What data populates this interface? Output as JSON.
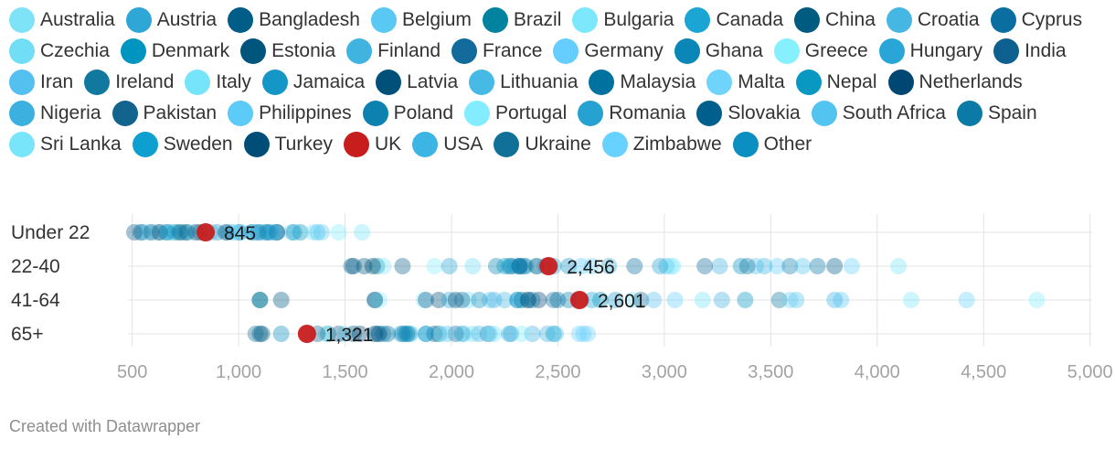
{
  "chart_data": {
    "type": "scatter",
    "title": "",
    "xlabel": "",
    "ylabel": "",
    "xlim": [
      480,
      5010
    ],
    "x_ticks": [
      {
        "value": 500,
        "label": "500"
      },
      {
        "value": 1000,
        "label": "1,000"
      },
      {
        "value": 1500,
        "label": "1,500"
      },
      {
        "value": 2000,
        "label": "2,000"
      },
      {
        "value": 2500,
        "label": "2,500"
      },
      {
        "value": 3000,
        "label": "3,000"
      },
      {
        "value": 3500,
        "label": "3,500"
      },
      {
        "value": 4000,
        "label": "4,000"
      },
      {
        "value": 4500,
        "label": "4,500"
      },
      {
        "value": 5000,
        "label": "5,000"
      }
    ],
    "grid": true,
    "legend_position": "top",
    "rows": [
      "Under 22",
      "22-40",
      "41-64",
      "65+"
    ],
    "highlight": {
      "series": "UK",
      "color": "#c71e1d",
      "values": [
        {
          "row": "Under 22",
          "value": 845,
          "label": "845"
        },
        {
          "row": "22-40",
          "value": 2456,
          "label": "2,456"
        },
        {
          "row": "41-64",
          "value": 2601,
          "label": "2,601"
        },
        {
          "row": "65+",
          "value": 1321,
          "label": "1,321"
        }
      ]
    },
    "series": [
      {
        "name": "Australia",
        "color": "#7fe3f7",
        "values": [
          1120,
          2400,
          2850,
          2060
        ]
      },
      {
        "name": "Austria",
        "color": "#2fa7d6",
        "values": [
          1010,
          2350,
          2360,
          1880
        ]
      },
      {
        "name": "Bangladesh",
        "color": "#005d87",
        "values": [
          540,
          1540,
          1100,
          1100
        ]
      },
      {
        "name": "Belgium",
        "color": "#59c9f4",
        "values": [
          950,
          2300,
          2180,
          1810
        ]
      },
      {
        "name": "Brazil",
        "color": "#00839f",
        "values": [
          700,
          1650,
          1100,
          1420
        ]
      },
      {
        "name": "Bulgaria",
        "color": "#7de7fc",
        "values": [
          690,
          1680,
          1870,
          1500
        ]
      },
      {
        "name": "Canada",
        "color": "#1aa5d5",
        "values": [
          1000,
          2480,
          2660,
          1780
        ]
      },
      {
        "name": "China",
        "color": "#005b80",
        "values": [
          820,
          1590,
          1200,
          1110
        ]
      },
      {
        "name": "Croatia",
        "color": "#46b7e3",
        "values": [
          620,
          2440,
          2250,
          1760
        ]
      },
      {
        "name": "Cyprus",
        "color": "#0a6fa0",
        "values": [
          1180,
          2860,
          2480,
          1940
        ]
      },
      {
        "name": "Czechia",
        "color": "#71def6",
        "values": [
          580,
          2100,
          2080,
          2100
        ]
      },
      {
        "name": "Denmark",
        "color": "#0095c1",
        "values": [
          1290,
          3360,
          3380,
          2480
        ]
      },
      {
        "name": "Estonia",
        "color": "#00557d",
        "values": [
          760,
          2280,
          1940,
          1540
        ]
      },
      {
        "name": "Finland",
        "color": "#40b3e0",
        "values": [
          1150,
          3260,
          3270,
          2450
        ]
      },
      {
        "name": "France",
        "color": "#126b9b",
        "values": [
          1060,
          3190,
          2890,
          2020
        ]
      },
      {
        "name": "Germany",
        "color": "#66ceff",
        "values": [
          980,
          3530,
          3050,
          2620
        ]
      },
      {
        "name": "Ghana",
        "color": "#0a87b6",
        "values": [
          660,
          2210,
          1640,
          1680
        ]
      },
      {
        "name": "Greece",
        "color": "#86f0ff",
        "values": [
          780,
          1920,
          1660,
          1410
        ]
      },
      {
        "name": "Hungary",
        "color": "#2aa5d8",
        "values": [
          550,
          1990,
          1990,
          1650
        ]
      },
      {
        "name": "India",
        "color": "#0d608f",
        "values": [
          510,
          1530,
          1880,
          1470
        ]
      },
      {
        "name": "Iran",
        "color": "#53c0ef",
        "values": [
          1250,
          3430,
          2950,
          1980
        ]
      },
      {
        "name": "Ireland",
        "color": "#11789f",
        "values": [
          1130,
          3390,
          3540,
          2170
        ]
      },
      {
        "name": "Italy",
        "color": "#76e4fb",
        "values": [
          1350,
          3040,
          3180,
          2200
        ]
      },
      {
        "name": "Jamaica",
        "color": "#1496c7",
        "values": [
          900,
          2550,
          2310,
          2280
        ]
      },
      {
        "name": "Latvia",
        "color": "#00507a",
        "values": [
          630,
          2400,
          2020,
          1570
        ]
      },
      {
        "name": "Lithuania",
        "color": "#47b9e5",
        "values": [
          870,
          3010,
          2610,
          2130
        ]
      },
      {
        "name": "Malaysia",
        "color": "#00729f",
        "values": [
          720,
          2340,
          2500,
          1700
        ]
      },
      {
        "name": "Malta",
        "color": "#6fd3fb",
        "values": [
          960,
          2660,
          3590,
          2640
        ]
      },
      {
        "name": "Nepal",
        "color": "#0898c2",
        "values": [
          1260,
          2250,
          2700,
          1800
        ]
      },
      {
        "name": "Netherlands",
        "color": "#004873",
        "values": [
          800,
          2320,
          2410,
          1660
        ]
      },
      {
        "name": "Nigeria",
        "color": "#3cb1e0",
        "values": [
          1070,
          2740,
          2200,
          2380
        ]
      },
      {
        "name": "Pakistan",
        "color": "#12638e",
        "values": [
          590,
          1770,
          1640,
          1370
        ]
      },
      {
        "name": "Philippines",
        "color": "#5ccbf8",
        "values": [
          1390,
          2610,
          3830,
          2180
        ]
      },
      {
        "name": "Poland",
        "color": "#0d82b0",
        "values": [
          750,
          3590,
          2550,
          1770
        ]
      },
      {
        "name": "Portugal",
        "color": "#84ecff",
        "values": [
          1470,
          3030,
          4750,
          2330
        ]
      },
      {
        "name": "Romania",
        "color": "#26a2d1",
        "values": [
          1100,
          2980,
          2770,
          2050
        ]
      },
      {
        "name": "Slovakia",
        "color": "#005f8c",
        "values": [
          1180,
          3800,
          2330,
          1920
        ]
      },
      {
        "name": "South Africa",
        "color": "#52c4ef",
        "values": [
          1370,
          3650,
          3620,
          2490
        ]
      },
      {
        "name": "Spain",
        "color": "#0b7aa6",
        "values": [
          1090,
          3720,
          2380,
          1790
        ]
      },
      {
        "name": "Sri Lanka",
        "color": "#78e5fb",
        "values": [
          1580,
          4100,
          4160,
          1950
        ]
      },
      {
        "name": "Sweden",
        "color": "#0d9fcf",
        "values": [
          670,
          2270,
          2310,
          1880
        ]
      },
      {
        "name": "Turkey",
        "color": "#004d77",
        "values": [
          940,
          1630,
          2360,
          1640
        ]
      },
      {
        "name": "USA",
        "color": "#3db5e4",
        "values": [
          1170,
          3470,
          3800,
          2270
        ]
      },
      {
        "name": "Ukraine",
        "color": "#117098",
        "values": [
          730,
          2320,
          2050,
          1080
        ]
      },
      {
        "name": "Zimbabwe",
        "color": "#67d2ff",
        "values": [
          1060,
          3880,
          4420,
          2600
        ]
      },
      {
        "name": "Other",
        "color": "#0a8fc0",
        "values": [
          1140,
          2320,
          2130,
          1200
        ]
      }
    ]
  },
  "legend_order": [
    "Australia",
    "Austria",
    "Bangladesh",
    "Belgium",
    "Brazil",
    "Bulgaria",
    "Canada",
    "China",
    "Croatia",
    "Cyprus",
    "Czechia",
    "Denmark",
    "Estonia",
    "Finland",
    "France",
    "Germany",
    "Ghana",
    "Greece",
    "Hungary",
    "India",
    "Iran",
    "Ireland",
    "Italy",
    "Jamaica",
    "Latvia",
    "Lithuania",
    "Malaysia",
    "Malta",
    "Nepal",
    "Netherlands",
    "Nigeria",
    "Pakistan",
    "Philippines",
    "Poland",
    "Portugal",
    "Romania",
    "Slovakia",
    "South Africa",
    "Spain",
    "Sri Lanka",
    "Sweden",
    "Turkey",
    "UK",
    "USA",
    "Ukraine",
    "Zimbabwe",
    "Other"
  ],
  "footer": "Created with Datawrapper"
}
